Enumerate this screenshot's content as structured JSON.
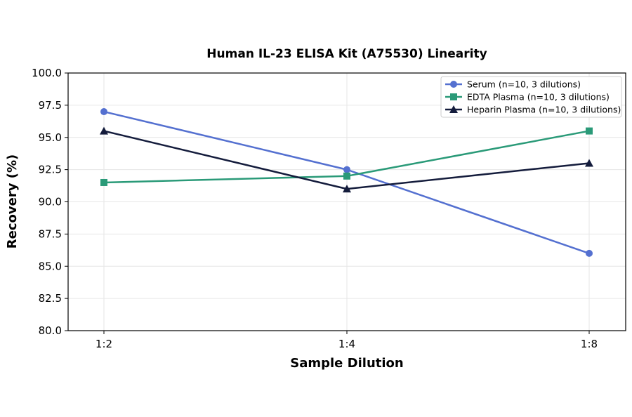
{
  "chart_data": {
    "type": "line",
    "title": "Human IL-23 ELISA Kit (A75530) Linearity",
    "xlabel": "Sample Dilution",
    "ylabel": "Recovery (%)",
    "categories": [
      "1:2",
      "1:4",
      "1:8"
    ],
    "ylim": [
      80.0,
      100.0
    ],
    "yticks": [
      "80.0",
      "82.5",
      "85.0",
      "87.5",
      "90.0",
      "92.5",
      "95.0",
      "97.5",
      "100.0"
    ],
    "grid": true,
    "legend_position": "top-right",
    "series": [
      {
        "name": "Serum (n=10, 3 dilutions)",
        "values": [
          97.0,
          92.5,
          86.0
        ],
        "color": "#5470d0",
        "marker": "circle"
      },
      {
        "name": "EDTA Plasma (n=10, 3 dilutions)",
        "values": [
          91.5,
          92.0,
          95.5
        ],
        "color": "#2a9a78",
        "marker": "square"
      },
      {
        "name": "Heparin Plasma (n=10, 3 dilutions)",
        "values": [
          95.5,
          91.0,
          93.0
        ],
        "color": "#141c3c",
        "marker": "triangle"
      }
    ]
  }
}
